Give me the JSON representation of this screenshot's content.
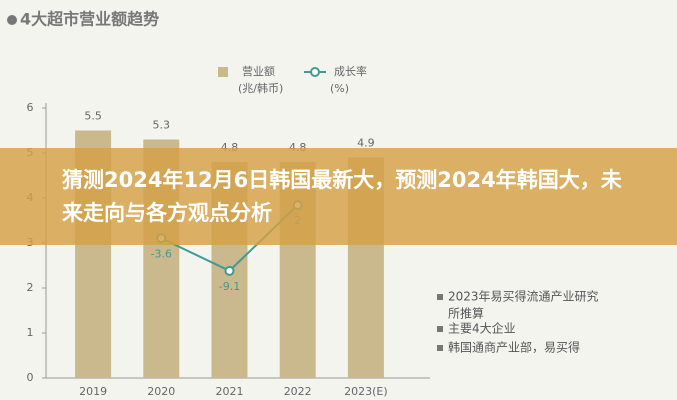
{
  "chart_data": {
    "type": "bar",
    "title": "4大超市营业额趋势",
    "categories": [
      "2019",
      "2020",
      "2021",
      "2022",
      "2023(E)"
    ],
    "series": [
      {
        "name": "营业额",
        "unit": "(兆/韩币)",
        "type": "bar",
        "color": "#c9b98c",
        "values": [
          5.5,
          5.3,
          4.8,
          4.8,
          4.9
        ]
      },
      {
        "name": "成长率",
        "unit": "(%)",
        "type": "line",
        "axis": "y2",
        "color": "#3f9a98",
        "values": [
          null,
          -3.6,
          -9.1,
          2.0,
          null
        ]
      }
    ],
    "ylim": [
      0,
      6
    ],
    "yticks": [
      0,
      1,
      2,
      3,
      4,
      5,
      6
    ],
    "y2lim": [
      -27.2,
      18.4
    ],
    "notes": [
      "2023年易买得流通产业研究所推算",
      "主要4大企业",
      "韩国通商产业部，易买得"
    ]
  },
  "overlay": {
    "title": "猜测2024年12月6日韩国最新大，预测2024年韩国大，未来走向与各方观点分析"
  }
}
